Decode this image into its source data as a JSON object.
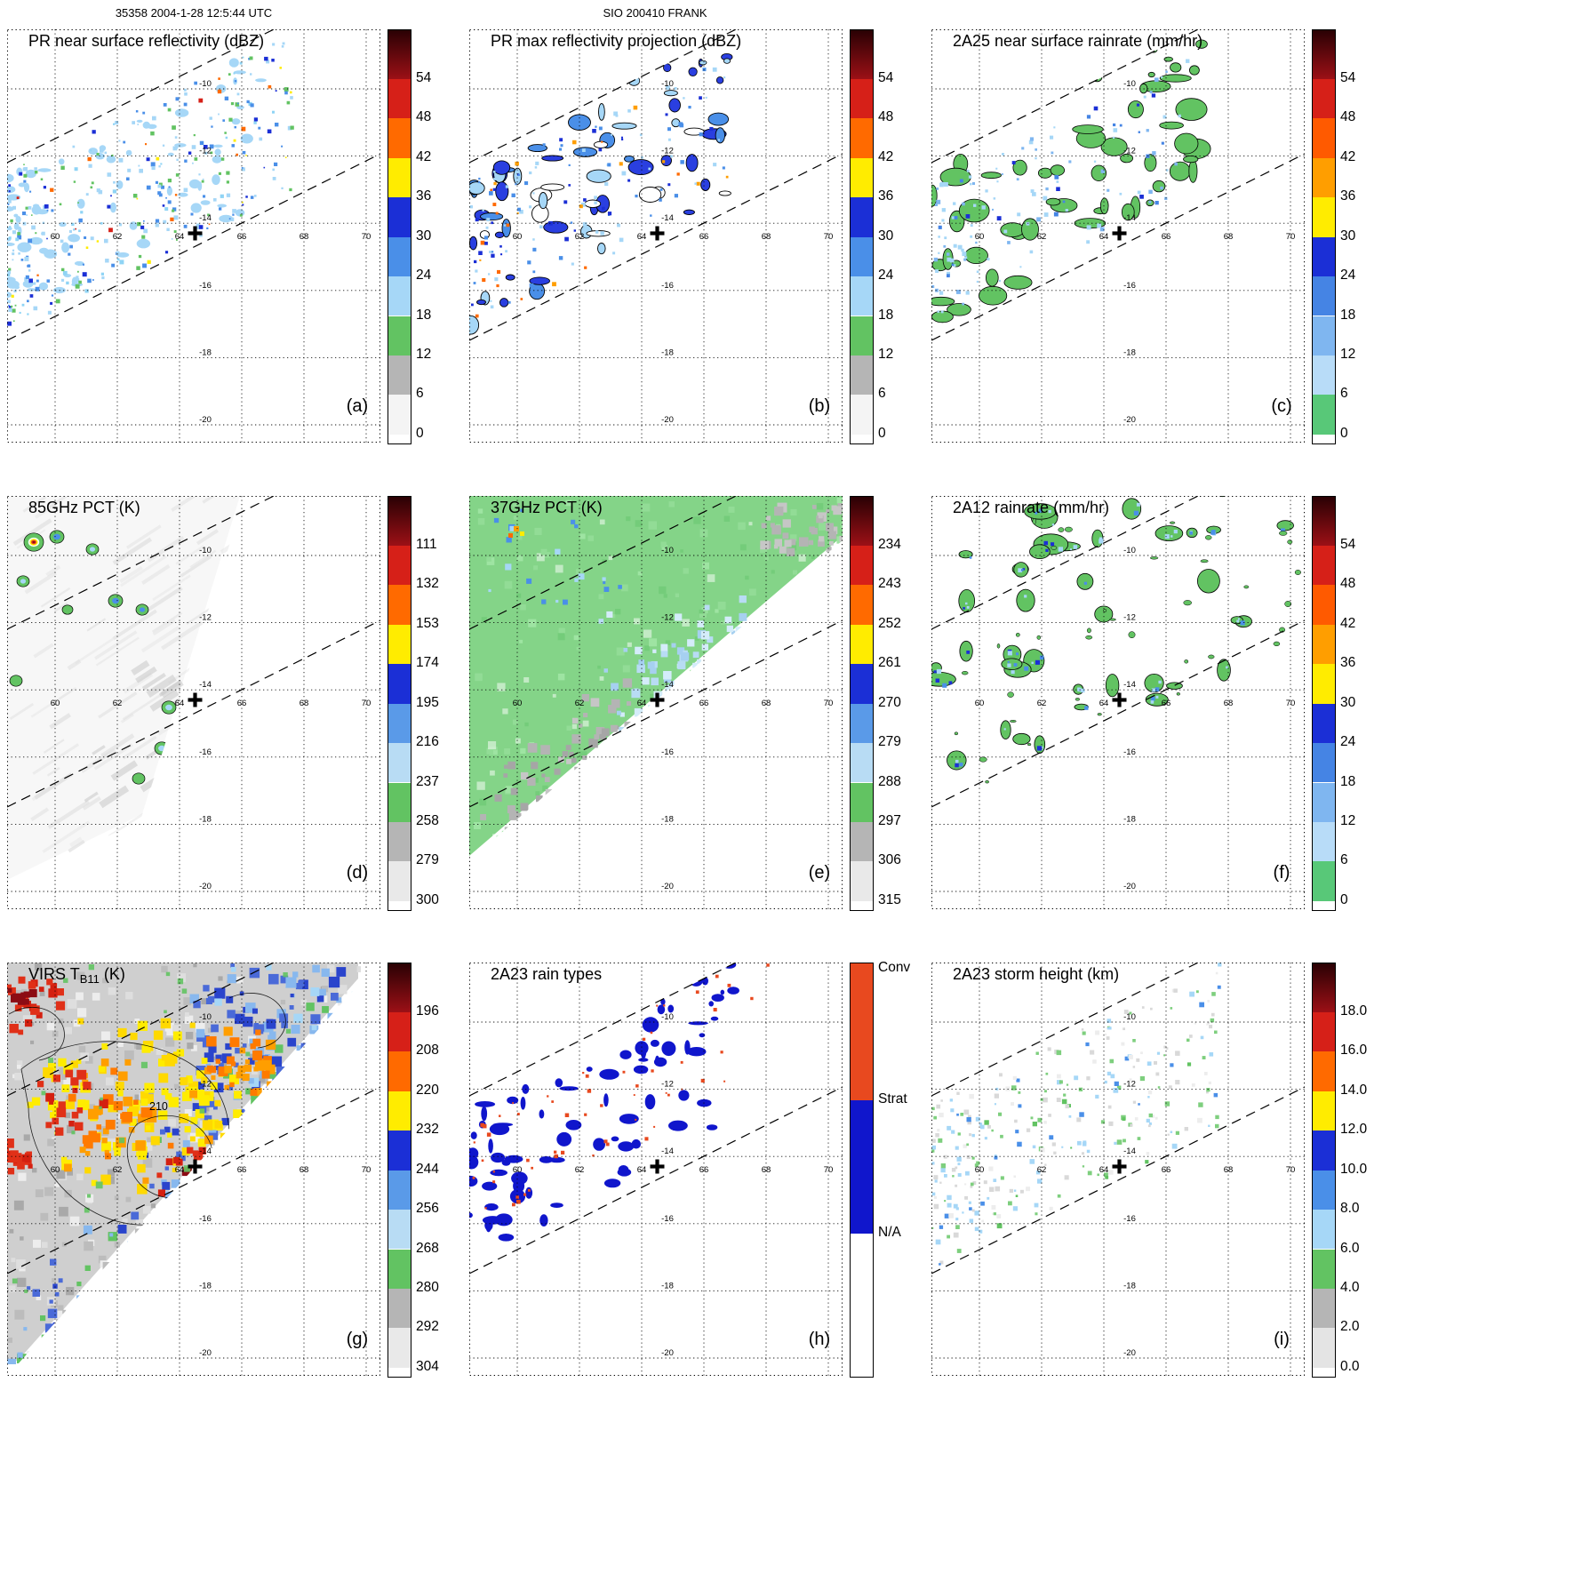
{
  "header": {
    "left_title": "35358 2004-1-28 12:5:44 UTC",
    "center_title": "SIO 200410 FRANK"
  },
  "axes": {
    "lon_ticks": [
      60,
      62,
      64,
      66,
      68,
      70
    ],
    "lat_ticks": [
      -10,
      -12,
      -14,
      -16,
      -18,
      -20
    ],
    "cross": {
      "lon": 64.5,
      "lat": -14.3
    }
  },
  "colorbar_scales": {
    "dbz": {
      "ticks": [
        "54",
        "48",
        "42",
        "36",
        "30",
        "24",
        "18",
        "12",
        "6",
        "0"
      ],
      "top_gradient": [
        "#2a0104",
        "#9c1016"
      ],
      "band_colors": [
        "#d62018",
        "#ff6a00",
        "#ffec00",
        "#1b2fd6",
        "#4a8fe8",
        "#a6d7f7",
        "#62c362",
        "#b5b5b5",
        "#f4f4f4"
      ],
      "bottom_color": "#ffffff"
    },
    "rainrate": {
      "ticks": [
        "54",
        "48",
        "42",
        "36",
        "30",
        "24",
        "18",
        "12",
        "6",
        "0"
      ],
      "top_gradient": [
        "#2a0104",
        "#9c1016"
      ],
      "band_colors": [
        "#d62018",
        "#ff5a00",
        "#ff9e00",
        "#ffec00",
        "#1b2fd6",
        "#4584e4",
        "#7fb6f0",
        "#b8dcf8",
        "#58c878"
      ],
      "bottom_color": "#ffffff"
    },
    "pct85": {
      "ticks": [
        "111",
        "132",
        "153",
        "174",
        "195",
        "216",
        "237",
        "258",
        "279",
        "300"
      ],
      "top_gradient": [
        "#2a0104",
        "#9c1016"
      ],
      "band_colors": [
        "#d62018",
        "#ff6a00",
        "#ffec00",
        "#1b2fd6",
        "#5a9ae8",
        "#b8dcf4",
        "#62c362",
        "#b5b5b5",
        "#e9e9e9"
      ],
      "bottom_color": "#ffffff"
    },
    "pct37": {
      "ticks": [
        "234",
        "243",
        "252",
        "261",
        "270",
        "279",
        "288",
        "297",
        "306",
        "315"
      ],
      "top_gradient": [
        "#2a0104",
        "#9c1016"
      ],
      "band_colors": [
        "#d62018",
        "#ff6a00",
        "#ffec00",
        "#1b2fd6",
        "#5a9ae8",
        "#b8dcf4",
        "#62c362",
        "#b5b5b5",
        "#e9e9e9"
      ],
      "bottom_color": "#ffffff"
    },
    "virs": {
      "ticks": [
        "196",
        "208",
        "220",
        "232",
        "244",
        "256",
        "268",
        "280",
        "292",
        "304"
      ],
      "top_gradient": [
        "#2a0104",
        "#9c1016"
      ],
      "band_colors": [
        "#d62018",
        "#ff6a00",
        "#ffec00",
        "#1b2fd6",
        "#5a9ae8",
        "#b8dcf4",
        "#62c362",
        "#b5b5b5",
        "#e9e9e9"
      ],
      "bottom_color": "#ffffff"
    },
    "storm_height": {
      "ticks": [
        "18.0",
        "16.0",
        "14.0",
        "12.0",
        "10.0",
        "8.0",
        "6.0",
        "4.0",
        "2.0",
        "0.0"
      ],
      "top_gradient": [
        "#2a0104",
        "#9c1016"
      ],
      "band_colors": [
        "#d62018",
        "#ff6a00",
        "#ffec00",
        "#1b2fd6",
        "#4a8fe8",
        "#a6d7f7",
        "#62c362",
        "#b5b5b5",
        "#e4e4e4"
      ],
      "bottom_color": "#ffffff"
    },
    "rain_types": {
      "labels": [
        "Conv",
        "Strat",
        "N/A"
      ],
      "colors": [
        "#e8491f",
        "#1016cc",
        "#ffffff"
      ],
      "boundaries": [
        0.331,
        0.654
      ]
    }
  },
  "panels": [
    {
      "key": "a",
      "letter": "(a)",
      "title": "PR near surface reflectivity (dBZ)",
      "scale": "dbz",
      "style": "pr_ns"
    },
    {
      "key": "b",
      "letter": "(b)",
      "title": "PR max reflectivity projection (dBZ)",
      "scale": "dbz",
      "style": "pr_max"
    },
    {
      "key": "c",
      "letter": "(c)",
      "title": "2A25 near surface rainrate (mm/hr)",
      "scale": "rainrate",
      "style": "rr_a25"
    },
    {
      "key": "d",
      "letter": "(d)",
      "title": "85GHz PCT (K)",
      "scale": "pct85",
      "style": "pct85"
    },
    {
      "key": "e",
      "letter": "(e)",
      "title": "37GHz PCT (K)",
      "scale": "pct37",
      "style": "pct37"
    },
    {
      "key": "f",
      "letter": "(f)",
      "title": "2A12 rainrate (mm/hr)",
      "scale": "rainrate",
      "style": "rr_a12"
    },
    {
      "key": "g",
      "letter": "(g)",
      "title_pre": "VIRS T",
      "title_sub": "B11",
      "title_post": " (K)",
      "scale": "virs",
      "style": "virs",
      "contour_label": "210"
    },
    {
      "key": "h",
      "letter": "(h)",
      "title": "2A23 rain types",
      "scale": "rain_types",
      "style": "raintype"
    },
    {
      "key": "i",
      "letter": "(i)",
      "title": "2A23 storm height (km)",
      "scale": "storm_height",
      "style": "storm_height"
    }
  ],
  "chart_data": [
    {
      "panel": "(a)",
      "type": "heatmap",
      "title": "PR near surface reflectivity (dBZ)",
      "units": "dBZ",
      "colorbar_ticks": [
        54,
        48,
        42,
        36,
        30,
        24,
        18,
        12,
        6,
        0
      ],
      "lon_ticks": [
        60,
        62,
        64,
        66,
        68,
        70
      ],
      "lat_ticks": [
        -10,
        -12,
        -14,
        -16,
        -18,
        -20
      ],
      "marker": {
        "lon": 64.5,
        "lat": -14.3
      },
      "content": "Scattered 18-40 dBZ echoes inside the narrow NE-SW TRMM PR swath (dashed edges) in the upper-left of the map"
    },
    {
      "panel": "(b)",
      "type": "heatmap",
      "title": "PR max reflectivity projection (dBZ)",
      "units": "dBZ",
      "colorbar_ticks": [
        54,
        48,
        42,
        36,
        30,
        24,
        18,
        12,
        6,
        0
      ],
      "content": "Same PR swath with stronger black-outlined 24-45 dBZ cells and a few orange (>42 dBZ) cores"
    },
    {
      "panel": "(c)",
      "type": "heatmap",
      "title": "2A25 near surface rainrate (mm/hr)",
      "units": "mm/hr",
      "colorbar_ticks": [
        54,
        48,
        42,
        36,
        30,
        24,
        18,
        12,
        6,
        0
      ],
      "content": "Black-outlined rain regions, mostly light rain (<6 mm/hr, green) with embedded 6-24 mm/hr blue pixels, along the PR swath"
    },
    {
      "panel": "(d)",
      "type": "heatmap",
      "title": "85GHz PCT (K)",
      "units": "K",
      "colorbar_ticks": [
        111,
        132,
        153,
        174,
        195,
        216,
        237,
        258,
        279,
        300
      ],
      "content": "Mostly warm near-300 K (white/gray) TMI field; a few small cold green-contoured spots (some <216 K blue, one <153 K red/orange) in the upper-left swath"
    },
    {
      "panel": "(e)",
      "type": "heatmap",
      "title": "37GHz PCT (K)",
      "units": "K",
      "colorbar_ticks": [
        234,
        243,
        252,
        261,
        270,
        279,
        288,
        297,
        306,
        315
      ],
      "content": "Broad ~288 K green field; 252-279 K light/dark blue depression near 63-66E 12-15S; >297 K gray patches at the swath edges"
    },
    {
      "panel": "(f)",
      "type": "heatmap",
      "title": "2A12 rainrate (mm/hr)",
      "units": "mm/hr",
      "colorbar_ticks": [
        54,
        48,
        42,
        36,
        30,
        24,
        18,
        12,
        6,
        0
      ],
      "content": "Widespread light TMI rain (green, <6 mm/hr) blobs with embedded 6-24 mm/hr blue cores across the wide TMI swath"
    },
    {
      "panel": "(g)",
      "type": "heatmap",
      "title": "VIRS TB11 (K)",
      "units": "K",
      "colorbar_ticks": [
        196,
        208,
        220,
        232,
        244,
        256,
        268,
        280,
        292,
        304
      ],
      "contour_label": "210",
      "content": "Cold IR cloud shield: <220 K orange/red canopy with ~210 K contour labelled near 62E 13S and dark-red <208 K cores; blue 244-256 K cloud bands and warm gray clear sky elsewhere"
    },
    {
      "panel": "(h)",
      "type": "categorical_map",
      "title": "2A23 rain types",
      "categories": [
        "Conv",
        "Strat",
        "N/A"
      ],
      "content": "Mostly stratiform (blue) rain areas with scattered convective (red-orange) pixels along the PR swath"
    },
    {
      "panel": "(i)",
      "type": "heatmap",
      "title": "2A23 storm height (km)",
      "units": "km",
      "colorbar_ticks": [
        18.0,
        16.0,
        14.0,
        12.0,
        10.0,
        8.0,
        6.0,
        4.0,
        2.0,
        0.0
      ],
      "content": "Storm heights mostly 2-10 km (gray / green / light-blue speckle) along the PR swath"
    }
  ]
}
